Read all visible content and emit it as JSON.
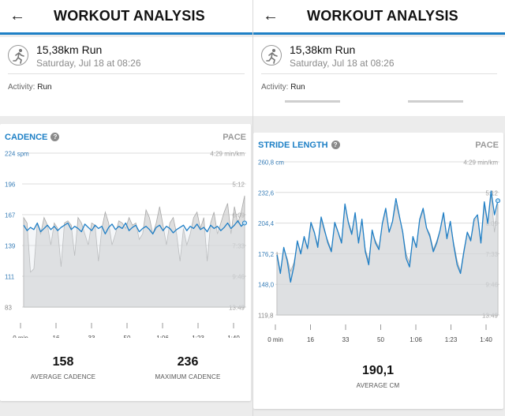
{
  "header": {
    "title": "WORKOUT ANALYSIS",
    "back_icon": "arrow-left-icon"
  },
  "summary": {
    "name": "15,38km Run",
    "date": "Saturday, Jul 18 at 08:26",
    "activity_label": "Activity:",
    "activity_value": "Run"
  },
  "colors": {
    "accent": "#1e80c6",
    "line": "#1f7fc6",
    "pace_fill": "#c8c8c8"
  },
  "cadence": {
    "title": "CADENCE",
    "pace_tab": "PACE",
    "avg_value": "158",
    "avg_label": "AVERAGE CADENCE",
    "max_value": "236",
    "max_label": "MAXIMUM CADENCE"
  },
  "stride": {
    "title": "STRIDE LENGTH",
    "pace_tab": "PACE",
    "avg_value": "190,1",
    "avg_label": "AVERAGE CM"
  },
  "chart_data": [
    {
      "type": "line",
      "title": "CADENCE",
      "y_left_unit": "spm",
      "y_left_ticks": [
        "224 spm",
        "196",
        "167",
        "139",
        "111",
        "83"
      ],
      "y_right_ticks": [
        "4:29 min/km",
        "5:12",
        "6:09",
        "7:33",
        "9:46",
        "13:49"
      ],
      "x_ticks": [
        "0 min",
        "16",
        "33",
        "50",
        "1:06",
        "1:23",
        "1:40"
      ],
      "ylim": [
        83,
        224
      ],
      "series": [
        {
          "values": [
            158,
            153,
            156,
            154,
            160,
            152,
            155,
            158,
            154,
            157,
            153,
            156,
            158,
            160,
            154,
            157,
            155,
            152,
            159,
            156,
            153,
            158,
            155,
            157,
            150,
            156,
            159,
            154,
            157,
            155,
            160,
            153,
            156,
            158,
            152,
            155,
            157,
            154,
            150,
            156,
            158,
            153,
            157,
            155,
            151,
            154,
            156,
            158,
            153,
            157,
            155,
            159,
            154,
            156,
            152,
            158,
            155,
            157,
            153,
            156,
            160,
            155,
            158,
            162,
            157,
            160
          ]
        },
        {
          "values": [
            165,
            160,
            115,
            118,
            160,
            150,
            165,
            158,
            140,
            160,
            155,
            120,
            160,
            162,
            158,
            130,
            165,
            160,
            150,
            140,
            160,
            158,
            125,
            155,
            170,
            160,
            140,
            150,
            162,
            160,
            155,
            165,
            158,
            160,
            145,
            150,
            172,
            165,
            150,
            160,
            175,
            158,
            140,
            160,
            165,
            150,
            125,
            155,
            140,
            150,
            165,
            170,
            155,
            165,
            125,
            160,
            170,
            150,
            160,
            170,
            178,
            150,
            175,
            160,
            170,
            185
          ]
        }
      ]
    },
    {
      "type": "line",
      "title": "STRIDE LENGTH",
      "y_left_unit": "cm",
      "y_left_ticks": [
        "260,8 cm",
        "232,6",
        "204,4",
        "176,2",
        "148,0",
        "119,8"
      ],
      "y_right_ticks": [
        "4:29 min/km",
        "5:12",
        "6:09",
        "7:33",
        "9:46",
        "13:49"
      ],
      "x_ticks": [
        "0 min",
        "16",
        "33",
        "50",
        "1:06",
        "1:23",
        "1:40"
      ],
      "ylim": [
        119.8,
        260.8
      ],
      "series": [
        {
          "values": [
            175,
            158,
            182,
            170,
            150,
            165,
            188,
            176,
            192,
            181,
            205,
            196,
            182,
            210,
            198,
            186,
            178,
            205,
            196,
            186,
            222,
            205,
            194,
            214,
            186,
            208,
            178,
            166,
            198,
            186,
            180,
            204,
            218,
            196,
            206,
            227,
            211,
            196,
            172,
            164,
            192,
            182,
            208,
            218,
            200,
            192,
            178,
            186,
            198,
            214,
            190,
            206,
            184,
            166,
            158,
            178,
            196,
            188,
            208,
            212,
            186,
            224,
            204,
            234,
            212,
            225
          ]
        },
        {
          "values": [
            178,
            160,
            180,
            172,
            160,
            168,
            186,
            178,
            190,
            180,
            203,
            195,
            185,
            207,
            196,
            188,
            180,
            203,
            196,
            188,
            220,
            206,
            196,
            212,
            188,
            206,
            180,
            170,
            196,
            188,
            182,
            203,
            216,
            197,
            205,
            222,
            210,
            197,
            176,
            168,
            190,
            184,
            206,
            216,
            200,
            194,
            180,
            188,
            198,
            212,
            192,
            205,
            186,
            170,
            160,
            180,
            196,
            190,
            206,
            210,
            188,
            220,
            204,
            230,
            196,
            222
          ]
        }
      ]
    }
  ]
}
